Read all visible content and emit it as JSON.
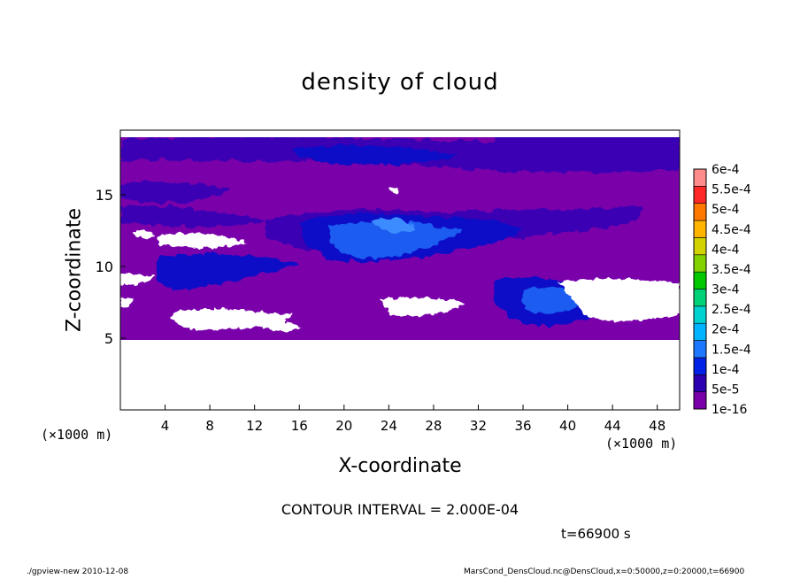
{
  "chart_data": {
    "type": "heatmap",
    "title": "density of cloud",
    "xlabel": "X-coordinate",
    "ylabel": "Z-coordinate",
    "x_unit_left": "(×1000 m)",
    "x_unit_right": "(×1000 m)",
    "xlim": [
      0,
      50
    ],
    "ylim": [
      0,
      19.5
    ],
    "x_ticks": [
      4,
      8,
      12,
      16,
      20,
      24,
      28,
      32,
      36,
      40,
      44,
      48
    ],
    "x_tick_labels": [
      "4",
      "8",
      "12",
      "16",
      "20",
      "24",
      "28",
      "32",
      "36",
      "40",
      "44",
      "48"
    ],
    "y_ticks": [
      5,
      10,
      15
    ],
    "y_tick_labels": [
      "5",
      "10",
      "15"
    ],
    "colorbar": {
      "levels": [
        "1e-16",
        "5e-5",
        "1e-4",
        "1.5e-4",
        "2e-4",
        "2.5e-4",
        "3e-4",
        "3.5e-4",
        "4e-4",
        "4.5e-4",
        "5e-4",
        "5.5e-4",
        "6e-4"
      ],
      "colors": [
        "#7a00aa",
        "#2a00b0",
        "#0022e6",
        "#1e78ff",
        "#00b4ff",
        "#00d2d2",
        "#00d278",
        "#00c800",
        "#82d200",
        "#d2d200",
        "#ffb400",
        "#ff7800",
        "#ff2828",
        "#ff8c8c"
      ]
    },
    "background_color": "#7a00aa",
    "grid": false,
    "contour_interval_label": "CONTOUR INTERVAL = 2.000E-04",
    "time_label": "t=66900 s"
  },
  "footer": {
    "left": "./gpview-new   2010-12-08",
    "right": "MarsCond_DensCloud.nc@DensCloud,x=0:50000,z=0:20000,t=66900"
  }
}
